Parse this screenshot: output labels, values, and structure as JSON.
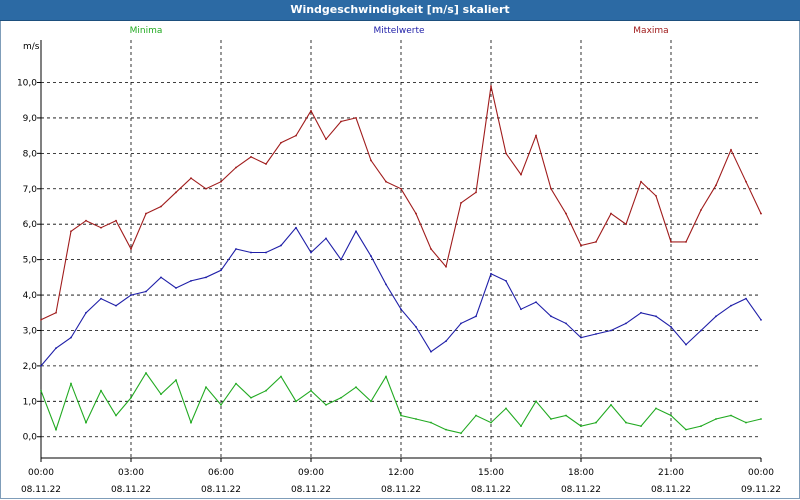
{
  "window": {
    "title": "Windgeschwindigkeit [m/s] skaliert"
  },
  "colors": {
    "minima": "#22aa22",
    "mittelwerte": "#1f1fa8",
    "maxima": "#a01c1c",
    "grid": "#000000",
    "titlebar": "#2c6aa4"
  },
  "chart_data": {
    "type": "line",
    "title": "Windgeschwindigkeit [m/s] skaliert",
    "ylabel": "m/s",
    "ylim": [
      -0.6,
      11.2
    ],
    "yticks": [
      0,
      1,
      2,
      3,
      4,
      5,
      6,
      7,
      8,
      9,
      10
    ],
    "ytick_labels": [
      "0,0",
      "1,0",
      "2,0",
      "3,0",
      "4,0",
      "5,0",
      "6,0",
      "7,0",
      "8,0",
      "9,0",
      "10,0"
    ],
    "xlim": [
      0,
      24
    ],
    "xticks": [
      0,
      3,
      6,
      9,
      12,
      15,
      18,
      21,
      24
    ],
    "xtick_labels": [
      {
        "time": "00:00",
        "date": "08.11.22"
      },
      {
        "time": "03:00",
        "date": "08.11.22"
      },
      {
        "time": "06:00",
        "date": "08.11.22"
      },
      {
        "time": "09:00",
        "date": "08.11.22"
      },
      {
        "time": "12:00",
        "date": "08.11.22"
      },
      {
        "time": "15:00",
        "date": "08.11.22"
      },
      {
        "time": "18:00",
        "date": "08.11.22"
      },
      {
        "time": "21:00",
        "date": "08.11.22"
      },
      {
        "time": "00:00",
        "date": "09.11.22"
      }
    ],
    "grid": true,
    "legend_position": "top",
    "x_unit": "hours",
    "series": [
      {
        "name": "Minima",
        "x": [
          0,
          0.5,
          1,
          1.5,
          2,
          2.5,
          3,
          3.5,
          4,
          4.5,
          5,
          5.5,
          6,
          6.5,
          7,
          7.5,
          8,
          8.5,
          9,
          9.5,
          10,
          10.5,
          11,
          11.5,
          12,
          12.5,
          13,
          13.5,
          14,
          14.5,
          15,
          15.5,
          16,
          16.5,
          17,
          17.5,
          18,
          18.5,
          19,
          19.5,
          20,
          20.5,
          21,
          21.5,
          22,
          22.5,
          23,
          23.5,
          24
        ],
        "values": [
          1.3,
          0.2,
          1.5,
          0.4,
          1.3,
          0.6,
          1.1,
          1.8,
          1.2,
          1.6,
          0.4,
          1.4,
          0.9,
          1.5,
          1.1,
          1.3,
          1.7,
          1.0,
          1.3,
          0.9,
          1.1,
          1.4,
          1.0,
          1.7,
          0.6,
          0.5,
          0.4,
          0.2,
          0.1,
          0.6,
          0.4,
          0.8,
          0.3,
          1.0,
          0.5,
          0.6,
          0.3,
          0.4,
          0.9,
          0.4,
          0.3,
          0.8,
          0.6,
          0.2,
          0.3,
          0.5,
          0.6,
          0.4,
          0.5
        ]
      },
      {
        "name": "Mittelwerte",
        "x": [
          0,
          0.5,
          1,
          1.5,
          2,
          2.5,
          3,
          3.5,
          4,
          4.5,
          5,
          5.5,
          6,
          6.5,
          7,
          7.5,
          8,
          8.5,
          9,
          9.5,
          10,
          10.5,
          11,
          11.5,
          12,
          12.5,
          13,
          13.5,
          14,
          14.5,
          15,
          15.5,
          16,
          16.5,
          17,
          17.5,
          18,
          18.5,
          19,
          19.5,
          20,
          20.5,
          21,
          21.5,
          22,
          22.5,
          23,
          23.5,
          24
        ],
        "values": [
          2.0,
          2.5,
          2.8,
          3.5,
          3.9,
          3.7,
          4.0,
          4.1,
          4.5,
          4.2,
          4.4,
          4.5,
          4.7,
          5.3,
          5.2,
          5.2,
          5.4,
          5.9,
          5.2,
          5.6,
          5.0,
          5.8,
          5.1,
          4.3,
          3.6,
          3.1,
          2.4,
          2.7,
          3.2,
          3.4,
          4.6,
          4.4,
          3.6,
          3.8,
          3.4,
          3.2,
          2.8,
          2.9,
          3.0,
          3.2,
          3.5,
          3.4,
          3.1,
          2.6,
          3.0,
          3.4,
          3.7,
          3.9,
          3.3
        ]
      },
      {
        "name": "Maxima",
        "x": [
          0,
          0.5,
          1,
          1.5,
          2,
          2.5,
          3,
          3.5,
          4,
          4.5,
          5,
          5.5,
          6,
          6.5,
          7,
          7.5,
          8,
          8.5,
          9,
          9.5,
          10,
          10.5,
          11,
          11.5,
          12,
          12.5,
          13,
          13.5,
          14,
          14.5,
          15,
          15.5,
          16,
          16.5,
          17,
          17.5,
          18,
          18.5,
          19,
          19.5,
          20,
          20.5,
          21,
          21.5,
          22,
          22.5,
          23,
          23.5,
          24
        ],
        "values": [
          3.3,
          3.5,
          5.8,
          6.1,
          5.9,
          6.1,
          5.3,
          6.3,
          6.5,
          6.9,
          7.3,
          7.0,
          7.2,
          7.6,
          7.9,
          7.7,
          8.3,
          8.5,
          9.2,
          8.4,
          8.9,
          9.0,
          7.8,
          7.2,
          7.0,
          6.3,
          5.3,
          4.8,
          6.6,
          6.9,
          9.9,
          8.0,
          7.4,
          8.5,
          7.0,
          6.3,
          5.4,
          5.5,
          6.3,
          6.0,
          7.2,
          6.8,
          5.5,
          5.5,
          6.4,
          7.1,
          8.1,
          7.2,
          6.3
        ]
      }
    ]
  }
}
